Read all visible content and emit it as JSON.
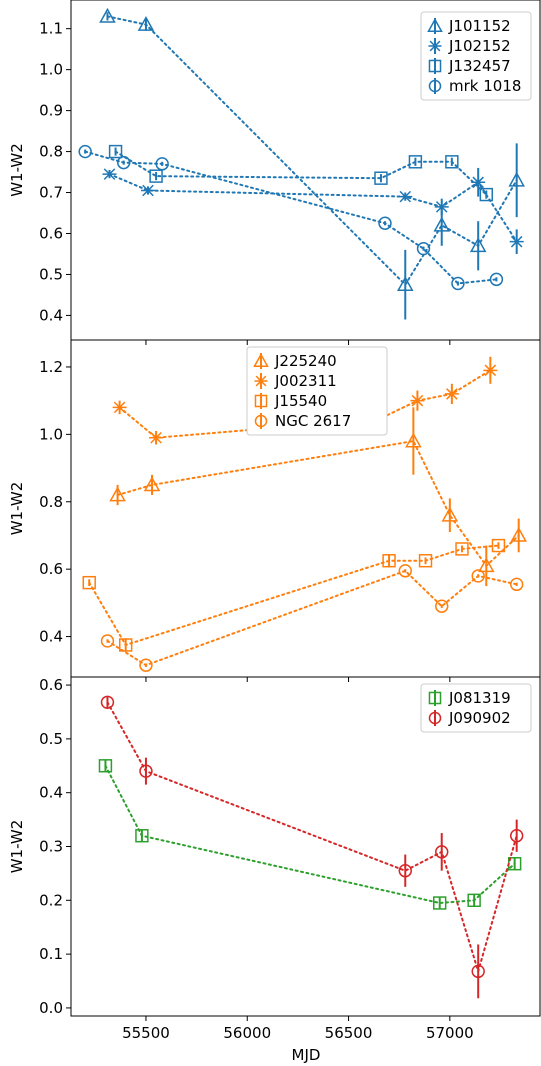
{
  "figure": {
    "xlabel": "MJD"
  },
  "chart_data": [
    {
      "type": "line",
      "ylabel": "W1-W2",
      "ylim": [
        0.34,
        1.17
      ],
      "yticks": [
        0.4,
        0.5,
        0.6,
        0.7,
        0.8,
        0.9,
        1.0,
        1.1
      ],
      "ytick_labels": [
        "0.4",
        "0.5",
        "0.6",
        "0.7",
        "0.8",
        "0.9",
        "1.0",
        "1.1"
      ],
      "legend_position": "top-right",
      "series": [
        {
          "name": "J101152",
          "marker": "triangle",
          "color": "#1f77b4",
          "points": [
            [
              55310,
              1.13,
              0.01
            ],
            [
              55500,
              1.11,
              0.015
            ],
            [
              56780,
              0.475,
              0.085
            ],
            [
              56960,
              0.62,
              0.05
            ],
            [
              57140,
              0.57,
              0.06
            ],
            [
              57330,
              0.73,
              0.09
            ]
          ]
        },
        {
          "name": "J102152",
          "marker": "x",
          "color": "#1f77b4",
          "points": [
            [
              55320,
              0.745,
              0.01
            ],
            [
              55510,
              0.705,
              0.01
            ],
            [
              56780,
              0.69,
              0.01
            ],
            [
              56960,
              0.665,
              0.02
            ],
            [
              57140,
              0.725,
              0.035
            ],
            [
              57330,
              0.58,
              0.03
            ]
          ]
        },
        {
          "name": "J132457",
          "marker": "square",
          "color": "#1f77b4",
          "points": [
            [
              55350,
              0.8,
              0.01
            ],
            [
              55550,
              0.74,
              0.01
            ],
            [
              56660,
              0.735,
              0.01
            ],
            [
              56830,
              0.775,
              0.01
            ],
            [
              57010,
              0.775,
              0.01
            ],
            [
              57180,
              0.695,
              0.01
            ]
          ]
        },
        {
          "name": "mrk 1018",
          "marker": "circle",
          "color": "#1f77b4",
          "points": [
            [
              55200,
              0.8,
              0.005
            ],
            [
              55390,
              0.773,
              0.005
            ],
            [
              55580,
              0.77,
              0.005
            ],
            [
              56680,
              0.625,
              0.005
            ],
            [
              56870,
              0.563,
              0.005
            ],
            [
              57040,
              0.478,
              0.005
            ],
            [
              57230,
              0.488,
              0.005
            ]
          ]
        }
      ]
    },
    {
      "type": "line",
      "ylabel": "W1-W2",
      "ylim": [
        0.28,
        1.28
      ],
      "yticks": [
        0.4,
        0.6,
        0.8,
        1.0,
        1.2
      ],
      "ytick_labels": [
        "0.4",
        "0.6",
        "0.8",
        "1.0",
        "1.2"
      ],
      "legend_position": "top-center",
      "series": [
        {
          "name": "J225240",
          "marker": "triangle",
          "color": "#ff7f0e",
          "points": [
            [
              55360,
              0.82,
              0.03
            ],
            [
              55530,
              0.85,
              0.03
            ],
            [
              56820,
              0.98,
              0.1
            ],
            [
              57000,
              0.76,
              0.05
            ],
            [
              57180,
              0.61,
              0.06
            ],
            [
              57340,
              0.7,
              0.05
            ]
          ]
        },
        {
          "name": "J002311",
          "marker": "x",
          "color": "#ff7f0e",
          "points": [
            [
              55370,
              1.08,
              0.02
            ],
            [
              55550,
              0.99,
              0.02
            ],
            [
              56650,
              1.045,
              0.02
            ],
            [
              56840,
              1.1,
              0.03
            ],
            [
              57010,
              1.12,
              0.03
            ],
            [
              57200,
              1.19,
              0.04
            ]
          ]
        },
        {
          "name": "J15540",
          "marker": "square",
          "color": "#ff7f0e",
          "points": [
            [
              55220,
              0.56,
              0.01
            ],
            [
              55400,
              0.375,
              0.02
            ],
            [
              56700,
              0.625,
              0.02
            ],
            [
              56880,
              0.625,
              0.01
            ],
            [
              57060,
              0.66,
              0.01
            ],
            [
              57240,
              0.67,
              0.01
            ]
          ]
        },
        {
          "name": "NGC 2617",
          "marker": "circle",
          "color": "#ff7f0e",
          "points": [
            [
              55310,
              0.387,
              0.005
            ],
            [
              55500,
              0.315,
              0.005
            ],
            [
              56780,
              0.595,
              0.005
            ],
            [
              56960,
              0.49,
              0.005
            ],
            [
              57140,
              0.58,
              0.005
            ],
            [
              57330,
              0.555,
              0.005
            ]
          ]
        }
      ]
    },
    {
      "type": "line",
      "ylabel": "W1-W2",
      "xlabel": "MJD",
      "ylim": [
        -0.015,
        0.615
      ],
      "yticks": [
        0.0,
        0.1,
        0.2,
        0.3,
        0.4,
        0.5,
        0.6
      ],
      "ytick_labels": [
        "0.0",
        "0.1",
        "0.2",
        "0.3",
        "0.4",
        "0.5",
        "0.6"
      ],
      "xlim": [
        55130,
        57450
      ],
      "xticks": [
        55500,
        56000,
        56500,
        57000
      ],
      "xtick_labels": [
        "55500",
        "56000",
        "56500",
        "57000"
      ],
      "legend_position": "top-right",
      "series": [
        {
          "name": "J081319",
          "marker": "square",
          "color": "#2ca02c",
          "points": [
            [
              55300,
              0.45,
              0.01
            ],
            [
              55480,
              0.32,
              0.01
            ],
            [
              56950,
              0.195,
              0.01
            ],
            [
              57120,
              0.2,
              0.01
            ],
            [
              57320,
              0.268,
              0.01
            ]
          ]
        },
        {
          "name": "J090902",
          "marker": "circle",
          "color": "#d62728",
          "points": [
            [
              55310,
              0.568,
              0.01
            ],
            [
              55500,
              0.44,
              0.025
            ],
            [
              56780,
              0.255,
              0.03
            ],
            [
              56960,
              0.29,
              0.035
            ],
            [
              57140,
              0.068,
              0.05
            ],
            [
              57330,
              0.32,
              0.03
            ]
          ]
        }
      ]
    }
  ]
}
